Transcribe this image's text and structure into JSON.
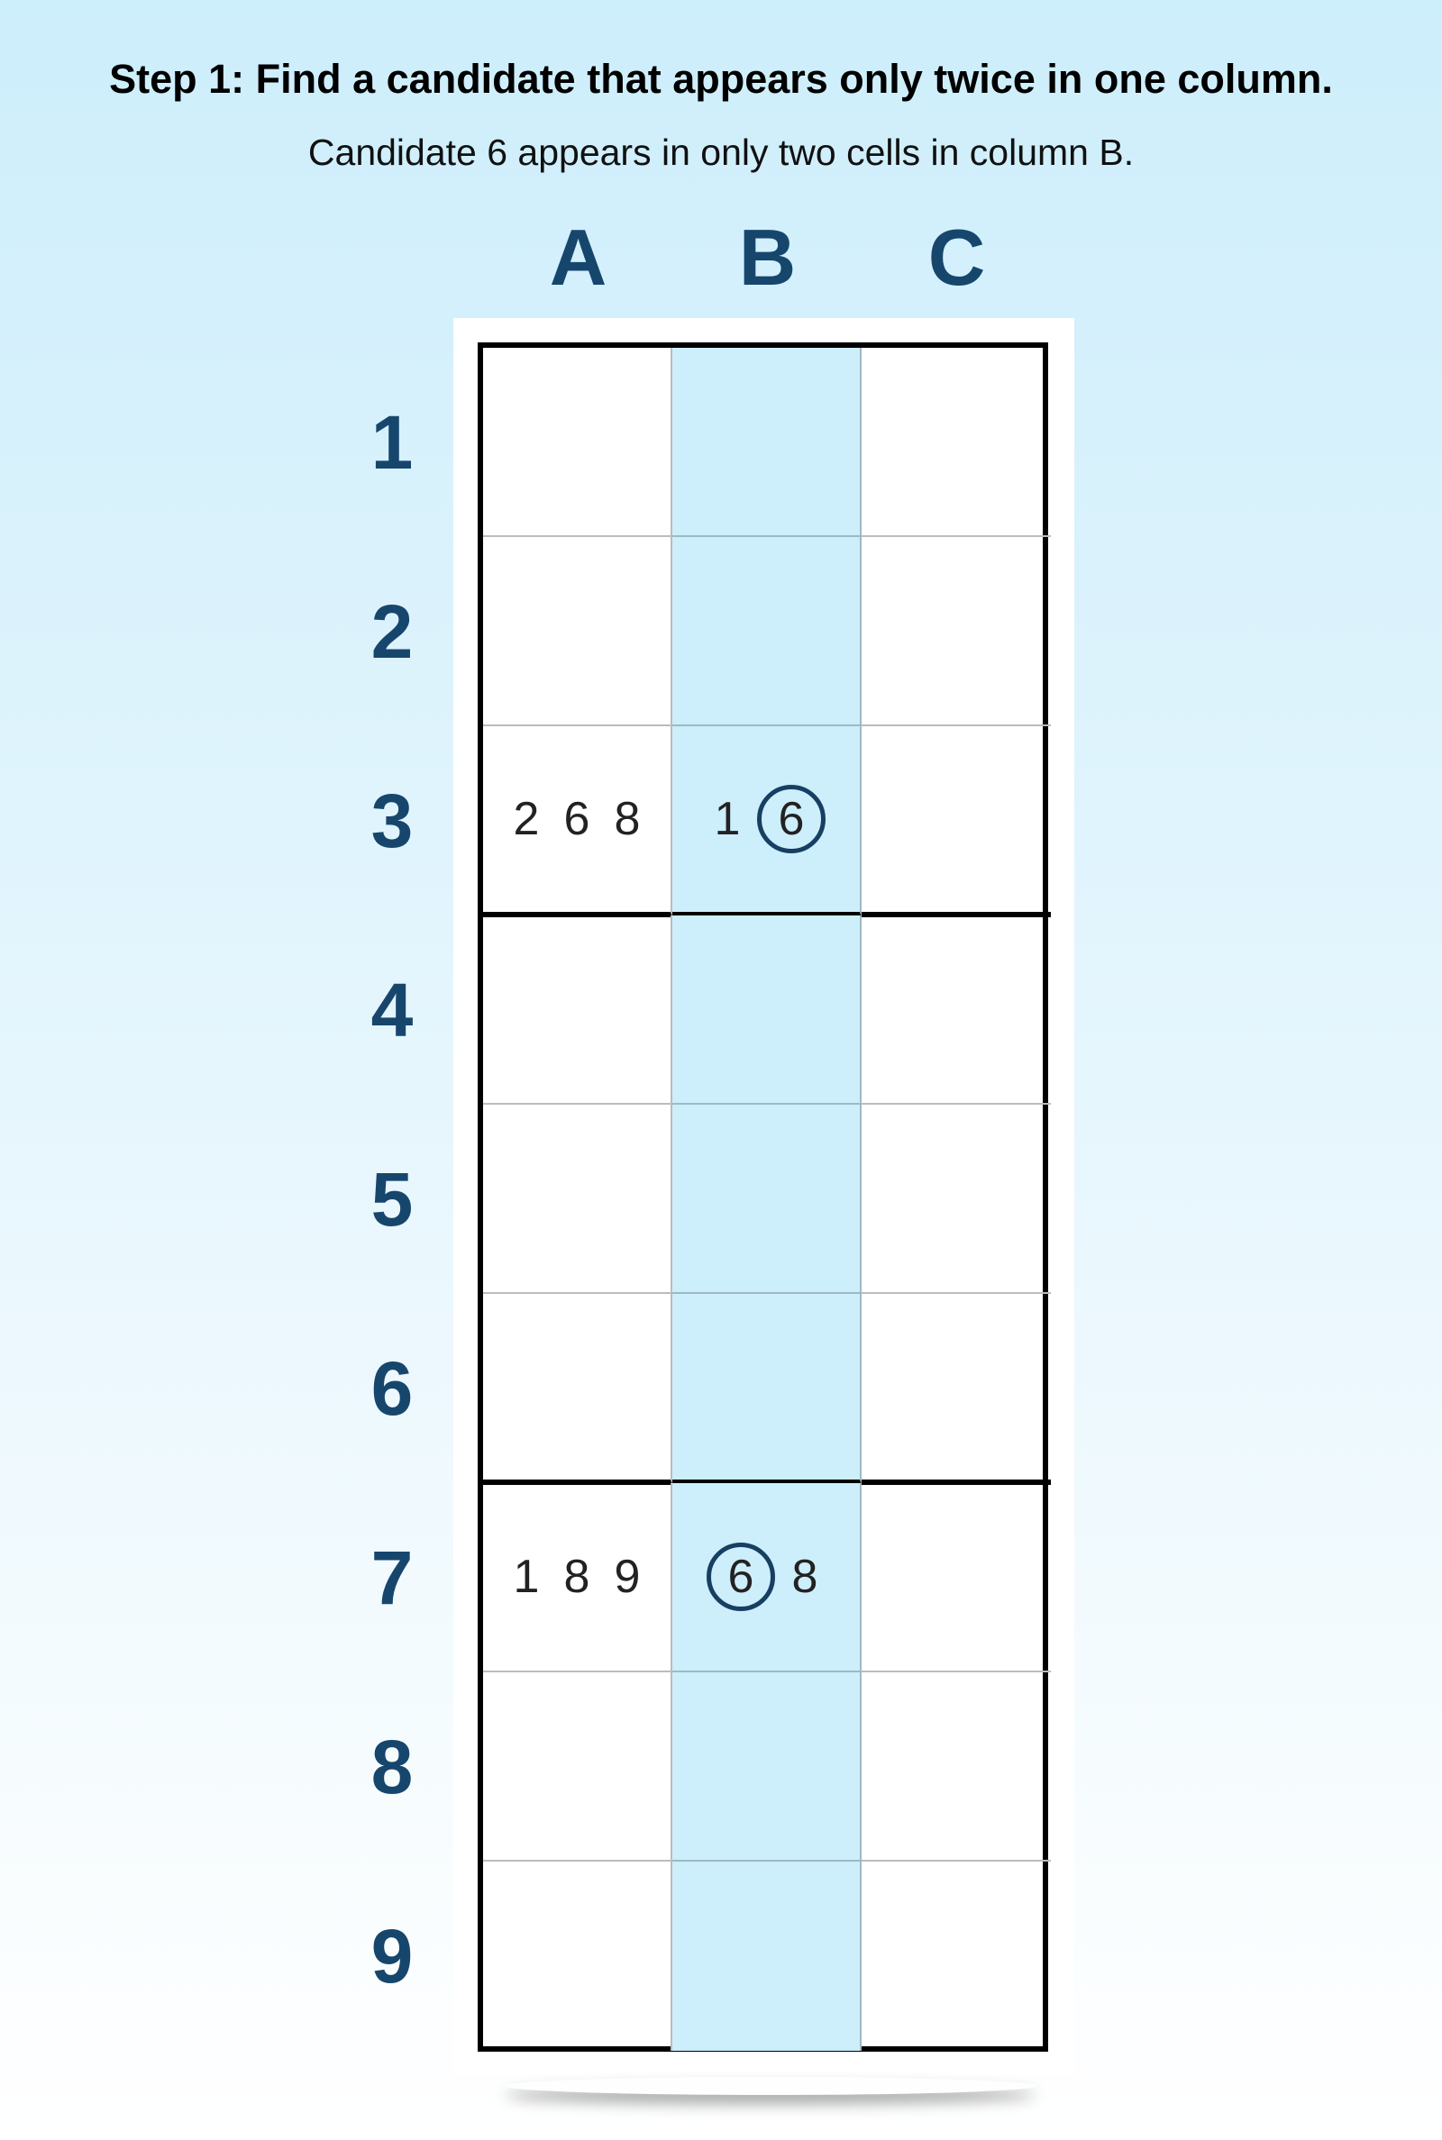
{
  "title": "Step 1: Find a candidate that appears only twice in one column.",
  "subtitle": "Candidate 6 appears in only two cells in column B.",
  "columns": [
    "A",
    "B",
    "C"
  ],
  "rows": [
    "1",
    "2",
    "3",
    "4",
    "5",
    "6",
    "7",
    "8",
    "9"
  ],
  "highlight_column": "B",
  "colors": {
    "highlight": "#cdeefb",
    "label": "#17466d",
    "circle": "#173f62"
  },
  "cells": [
    [
      [],
      [],
      []
    ],
    [
      [],
      [],
      []
    ],
    [
      [
        "2",
        "6",
        "8"
      ],
      [
        "1",
        "6"
      ],
      []
    ],
    [
      [],
      [],
      []
    ],
    [
      [],
      [],
      []
    ],
    [
      [],
      [],
      []
    ],
    [
      [
        "1",
        "8",
        "9"
      ],
      [
        "6",
        "8"
      ],
      []
    ],
    [
      [],
      [],
      []
    ],
    [
      [],
      [],
      []
    ]
  ],
  "circled": {
    "2-1": [
      "6"
    ],
    "6-1": [
      "6"
    ]
  }
}
